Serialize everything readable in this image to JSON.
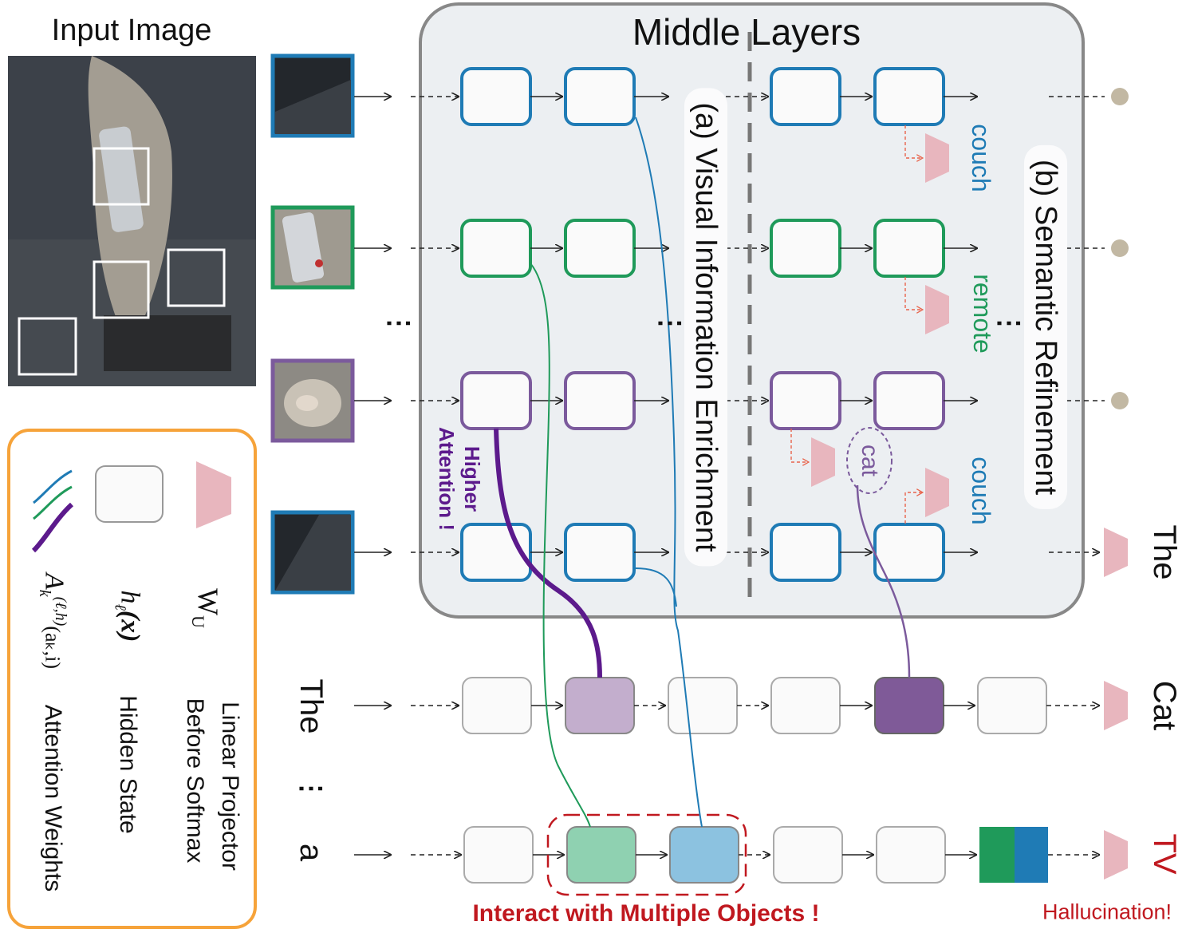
{
  "title": "Middle Layers",
  "input_image_label": "Input Image",
  "phase_a_label": "(a) Visual Information Enrichment",
  "phase_b_label": "(b) Semantic Refinement",
  "higher_attention_lines": [
    "Higher",
    "Attention !"
  ],
  "row_ellipsis": "⋮",
  "interact_label": "Interact with Multiple Objects !",
  "hallucination_label": "Hallucination!",
  "semantic_words": {
    "row1": "couch",
    "row2": "remote",
    "cat": "cat",
    "row4": "couch"
  },
  "text_tokens": {
    "row1_input": "The",
    "row2_input": "a",
    "vertical_ellipsis": "⋮"
  },
  "outputs": {
    "row4": "The",
    "text_row1": "Cat",
    "text_row2": "TV"
  },
  "legend": {
    "projector_symbol": "W",
    "projector_sub": "U",
    "projector_desc_1": "Linear Projector",
    "projector_desc_2": "Before Softmax",
    "hidden_symbol": "h",
    "hidden_sub": "ℓ",
    "hidden_arg": "(x)",
    "hidden_desc": "Hidden State",
    "attn_symbol": "A",
    "attn_sub": "k",
    "attn_sup": "(ℓ,h)",
    "attn_arg": "(aₖ,i)",
    "attn_desc": "Attention Weights"
  },
  "colors": {
    "blue": "#1f7bb5",
    "green": "#1f9a5a",
    "purple": "#7b5a9c",
    "dark_purple": "#5c1a8c",
    "red": "#c0181f",
    "orange": "#f6a33a",
    "pink": "#e8b6be",
    "panel": "#eceff2",
    "panel_border": "#888888",
    "light_purple_fill": "#c3aecd",
    "dark_purple_fill": "#7f5a98",
    "light_green_fill": "#8fd1b1",
    "light_blue_fill": "#8cc2e0",
    "dot": "#c2b8a3"
  }
}
